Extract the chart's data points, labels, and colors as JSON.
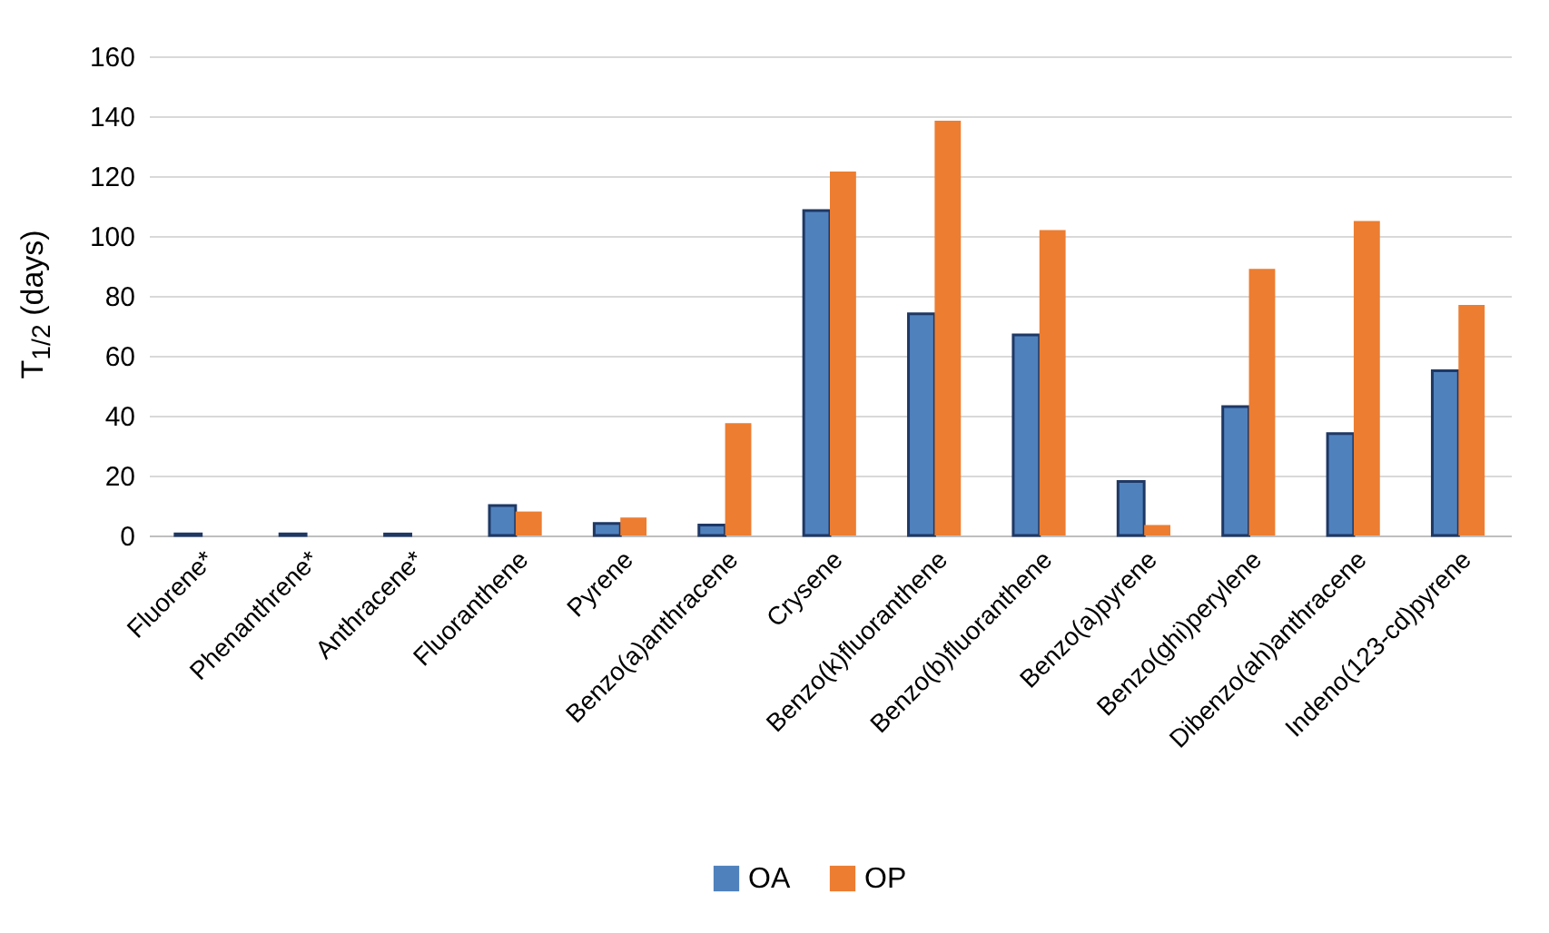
{
  "chart_data": {
    "type": "bar",
    "ylabel": "T$_{1/2}$ (days)",
    "categories": [
      "Fluorene*",
      "Phenanthrene*",
      "Anthracene*",
      "Fluoranthene",
      "Pyrene",
      "Benzo(a)anthracene",
      "Crysene",
      "Benzo(k)fluoranthene",
      "Benzo(b)fluoranthene",
      "Benzo(a)pyrene",
      "Benzo(ghi)perylene",
      "Dibenzo(ah)anthracene",
      "Indeno(123-cd)pyrene"
    ],
    "series": [
      {
        "name": "OA",
        "color": "#4f81bd",
        "values": [
          0.5,
          0.5,
          0.5,
          10,
          4,
          3.5,
          108.5,
          74,
          67,
          18,
          43,
          34,
          55
        ]
      },
      {
        "name": "OP",
        "color": "#ed7d31",
        "values": [
          null,
          null,
          null,
          8,
          6,
          37.5,
          121.5,
          138.5,
          102,
          3.5,
          89,
          105,
          77
        ]
      }
    ],
    "ylim": [
      0,
      160
    ],
    "yticks": [
      0,
      20,
      40,
      60,
      80,
      100,
      120,
      140,
      160
    ],
    "grid": "y",
    "legend": "bottom"
  }
}
